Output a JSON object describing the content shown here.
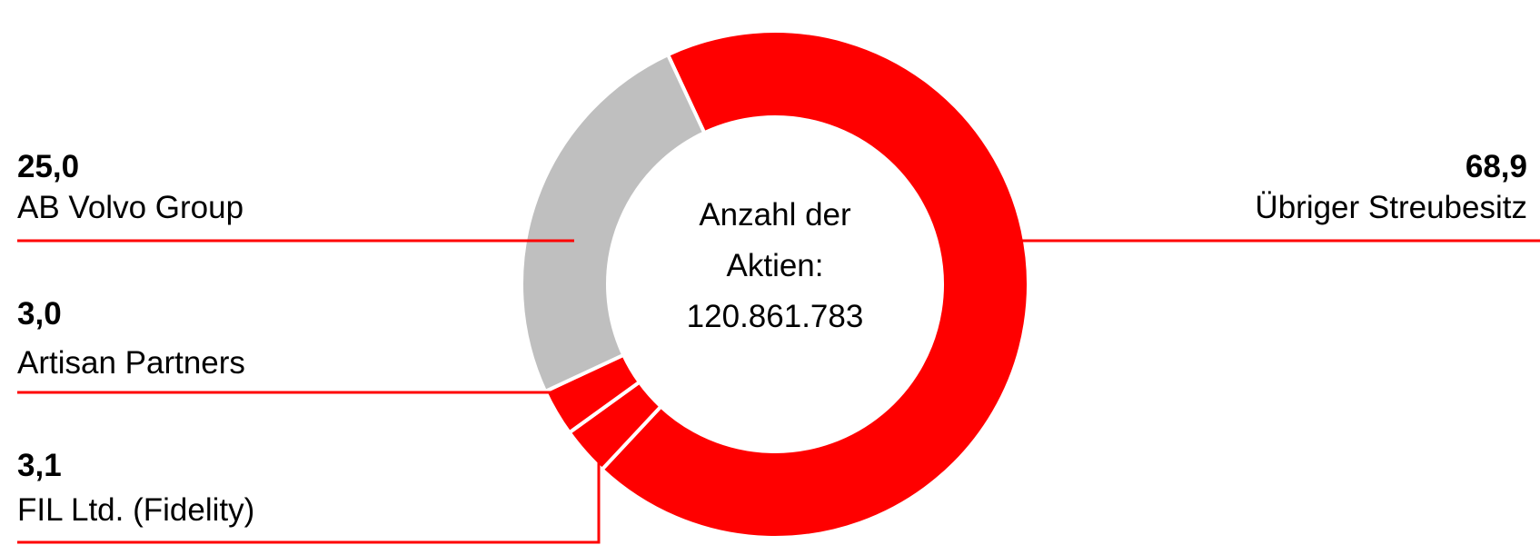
{
  "chart_data": {
    "type": "donut",
    "center_label": [
      "Anzahl der",
      "Aktien:",
      "120.861.783"
    ],
    "categories": [
      "Übriger Streubesitz",
      "FIL Ltd. (Fidelity)",
      "Artisan Partners",
      "AB Volvo Group"
    ],
    "values": [
      68.9,
      3.1,
      3.0,
      25.0
    ],
    "value_labels": [
      "68,9",
      "3,1",
      "3,0",
      "25,0"
    ],
    "colors": [
      "#ff0000",
      "#ff0000",
      "#ff0000",
      "#bfbfbf"
    ]
  }
}
